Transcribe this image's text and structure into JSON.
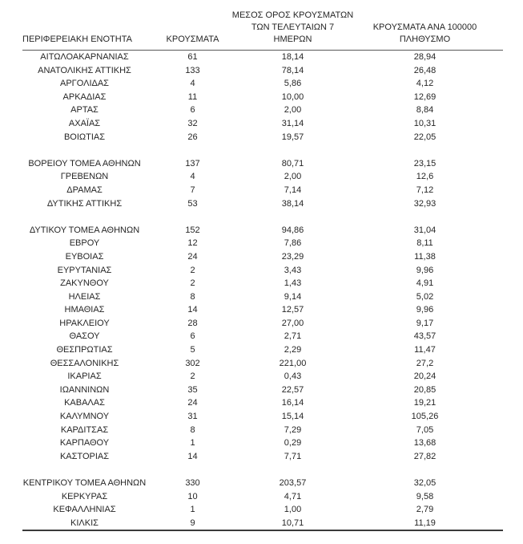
{
  "page": {
    "background": "#ffffff",
    "text_color": "#262626",
    "rule_color": "#595959"
  },
  "table": {
    "headers": {
      "region": "ΠΕΡΙΦΕΡΕΙΑΚΗ ΕΝΟΤΗΤΑ",
      "cases": "ΚΡΟΥΣΜΑΤΑ",
      "avg7_line1": "ΜΕΣΟΣ ΟΡΟΣ ΚΡΟΥΣΜΑΤΩΝ",
      "avg7_line2": "ΤΩΝ ΤΕΛΕΥΤΑΙΩΝ 7",
      "avg7_line3": "ΗΜΕΡΩΝ",
      "per100k_line1": "ΚΡΟΥΣΜΑΤΑ ΑΝΑ 100000",
      "per100k_line2": "ΠΛΗΘΥΣΜΟ"
    },
    "columns": [
      "region",
      "cases",
      "avg7",
      "per100k"
    ],
    "rows": [
      [
        "ΑΙΤΩΛΟΑΚΑΡΝΑΝΙΑΣ",
        "61",
        "18,14",
        "28,94"
      ],
      [
        "ΑΝΑΤΟΛΙΚΗΣ ΑΤΤΙΚΗΣ",
        "133",
        "78,14",
        "26,48"
      ],
      [
        "ΑΡΓΟΛΙΔΑΣ",
        "4",
        "5,86",
        "4,12"
      ],
      [
        "ΑΡΚΑΔΙΑΣ",
        "11",
        "10,00",
        "12,69"
      ],
      [
        "ΑΡΤΑΣ",
        "6",
        "2,00",
        "8,84"
      ],
      [
        "ΑΧΑΪΑΣ",
        "32",
        "31,14",
        "10,31"
      ],
      [
        "ΒΟΙΩΤΙΑΣ",
        "26",
        "19,57",
        "22,05"
      ],
      null,
      [
        "ΒΟΡΕΙΟΥ ΤΟΜΕΑ ΑΘΗΝΩΝ",
        "137",
        "80,71",
        "23,15"
      ],
      [
        "ΓΡΕΒΕΝΩΝ",
        "4",
        "2,00",
        "12,6"
      ],
      [
        "ΔΡΑΜΑΣ",
        "7",
        "7,14",
        "7,12"
      ],
      [
        "ΔΥΤΙΚΗΣ ΑΤΤΙΚΗΣ",
        "53",
        "38,14",
        "32,93"
      ],
      null,
      [
        "ΔΥΤΙΚΟΥ ΤΟΜΕΑ ΑΘΗΝΩΝ",
        "152",
        "94,86",
        "31,04"
      ],
      [
        "ΕΒΡΟΥ",
        "12",
        "7,86",
        "8,11"
      ],
      [
        "ΕΥΒΟΙΑΣ",
        "24",
        "23,29",
        "11,38"
      ],
      [
        "ΕΥΡΥΤΑΝΙΑΣ",
        "2",
        "3,43",
        "9,96"
      ],
      [
        "ΖΑΚΥΝΘΟΥ",
        "2",
        "1,43",
        "4,91"
      ],
      [
        "ΗΛΕΙΑΣ",
        "8",
        "9,14",
        "5,02"
      ],
      [
        "ΗΜΑΘΙΑΣ",
        "14",
        "12,57",
        "9,96"
      ],
      [
        "ΗΡΑΚΛΕΙΟΥ",
        "28",
        "27,00",
        "9,17"
      ],
      [
        "ΘΑΣΟΥ",
        "6",
        "2,71",
        "43,57"
      ],
      [
        "ΘΕΣΠΡΩΤΙΑΣ",
        "5",
        "2,29",
        "11,47"
      ],
      [
        "ΘΕΣΣΑΛΟΝΙΚΗΣ",
        "302",
        "221,00",
        "27,2"
      ],
      [
        "ΙΚΑΡΙΑΣ",
        "2",
        "0,43",
        "20,24"
      ],
      [
        "ΙΩΑΝΝΙΝΩΝ",
        "35",
        "22,57",
        "20,85"
      ],
      [
        "ΚΑΒΑΛΑΣ",
        "24",
        "16,14",
        "19,21"
      ],
      [
        "ΚΑΛΥΜΝΟΥ",
        "31",
        "15,14",
        "105,26"
      ],
      [
        "ΚΑΡΔΙΤΣΑΣ",
        "8",
        "7,29",
        "7,05"
      ],
      [
        "ΚΑΡΠΑΘΟΥ",
        "1",
        "0,29",
        "13,68"
      ],
      [
        "ΚΑΣΤΟΡΙΑΣ",
        "14",
        "7,71",
        "27,82"
      ],
      null,
      [
        "ΚΕΝΤΡΙΚΟΥ ΤΟΜΕΑ ΑΘΗΝΩΝ",
        "330",
        "203,57",
        "32,05"
      ],
      [
        "ΚΕΡΚΥΡΑΣ",
        "10",
        "4,71",
        "9,58"
      ],
      [
        "ΚΕΦΑΛΛΗΝΙΑΣ",
        "1",
        "1,00",
        "2,79"
      ],
      [
        "ΚΙΛΚΙΣ",
        "9",
        "10,71",
        "11,19"
      ]
    ]
  }
}
